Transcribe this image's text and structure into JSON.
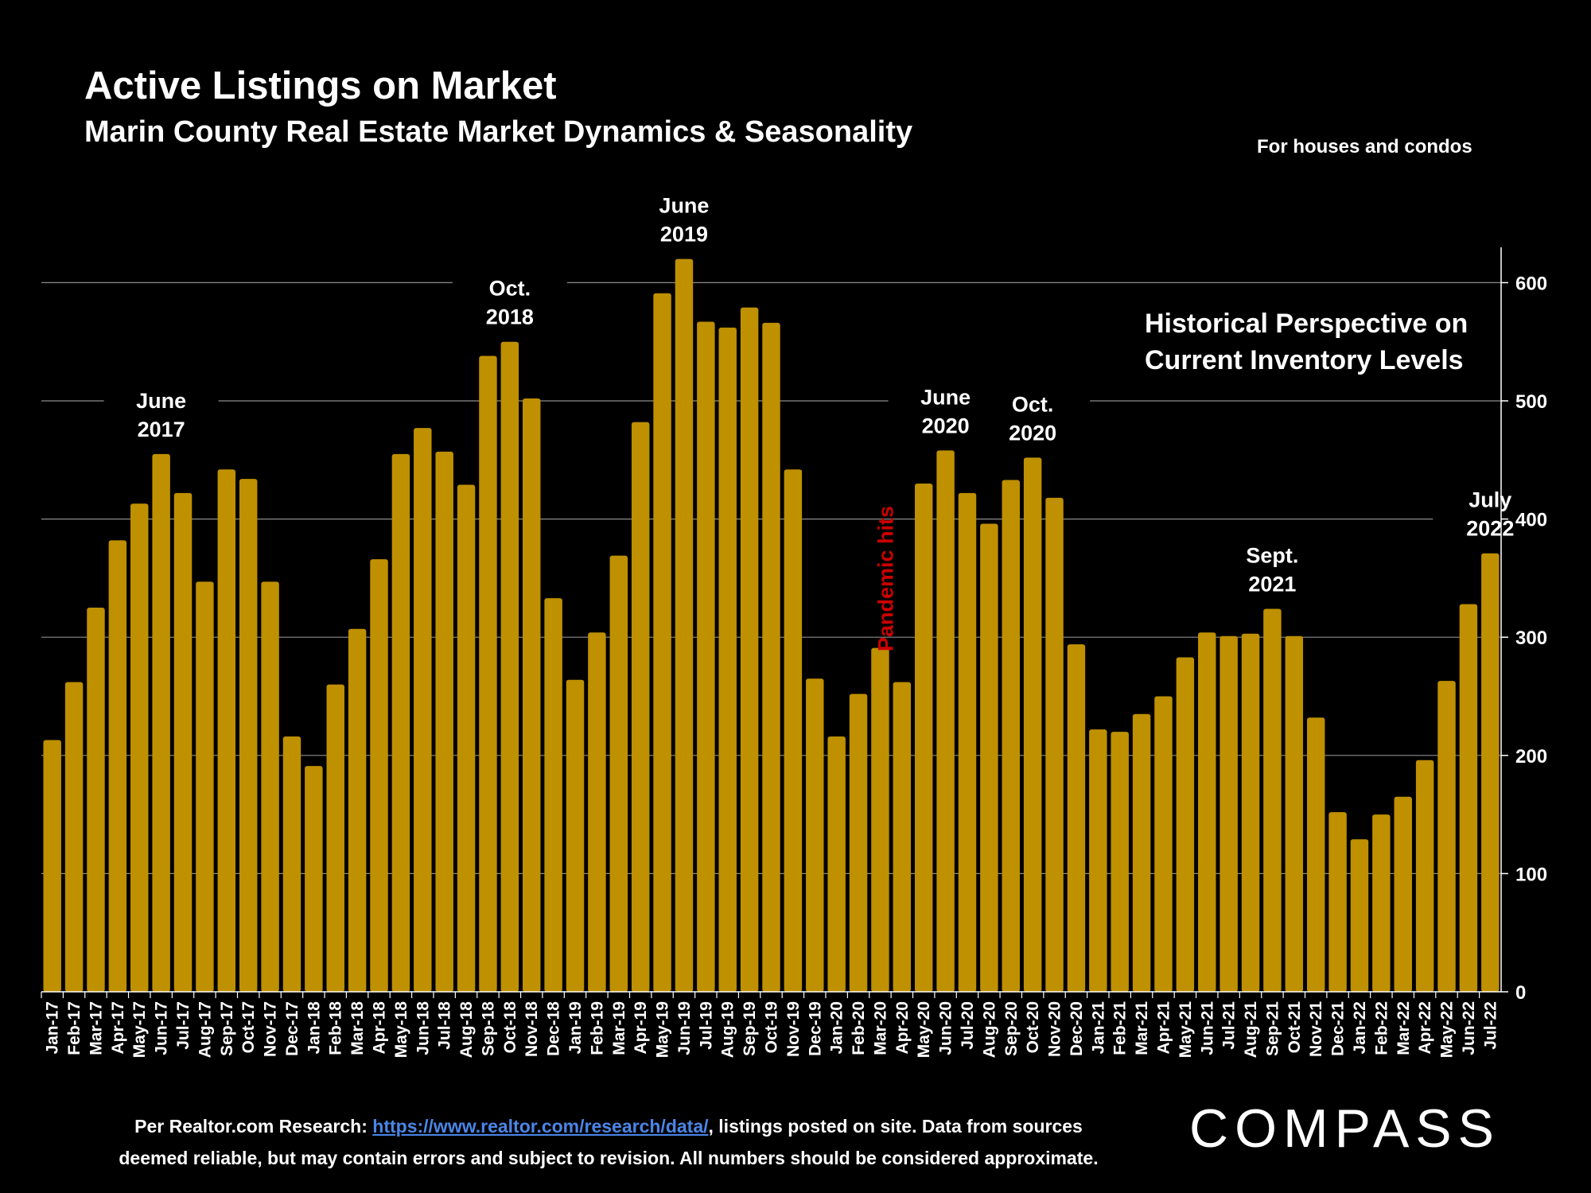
{
  "header": {
    "title": "Active Listings on Market",
    "subtitle": "Marin County Real Estate Market Dynamics & Seasonality",
    "note": "For houses and condos",
    "perspective_line1": "Historical Perspective on",
    "perspective_line2": "Current Inventory Levels"
  },
  "footer": {
    "prefix": "Per Realtor.com Research:  ",
    "link": "https://www.realtor.com/research/data/",
    "suffix": ", listings posted on site. Data from sources",
    "line2": "deemed reliable, but may contain errors and subject to revision. All numbers should be considered approximate."
  },
  "logo": {
    "text": "COMPASS"
  },
  "colors": {
    "bar": "#BF9000",
    "background": "#000000",
    "grid": "#8c8c8c",
    "pandemic_label": "#cc0000"
  },
  "chart_data": {
    "type": "bar",
    "categories": [
      "Jan-17",
      "Feb-17",
      "Mar-17",
      "Apr-17",
      "May-17",
      "Jun-17",
      "Jul-17",
      "Aug-17",
      "Sep-17",
      "Oct-17",
      "Nov-17",
      "Dec-17",
      "Jan-18",
      "Feb-18",
      "Mar-18",
      "Apr-18",
      "May-18",
      "Jun-18",
      "Jul-18",
      "Aug-18",
      "Sep-18",
      "Oct-18",
      "Nov-18",
      "Dec-18",
      "Jan-19",
      "Feb-19",
      "Mar-19",
      "Apr-19",
      "May-19",
      "Jun-19",
      "Jul-19",
      "Aug-19",
      "Sep-19",
      "Oct-19",
      "Nov-19",
      "Dec-19",
      "Jan-20",
      "Feb-20",
      "Mar-20",
      "Apr-20",
      "May-20",
      "Jun-20",
      "Jul-20",
      "Aug-20",
      "Sep-20",
      "Oct-20",
      "Nov-20",
      "Dec-20",
      "Jan-21",
      "Feb-21",
      "Mar-21",
      "Apr-21",
      "May-21",
      "Jun-21",
      "Jul-21",
      "Aug-21",
      "Sep-21",
      "Oct-21",
      "Nov-21",
      "Dec-21",
      "Jan-22",
      "Feb-22",
      "Mar-22",
      "Apr-22",
      "May-22",
      "Jun-22",
      "Jul-22"
    ],
    "values": [
      213,
      262,
      325,
      382,
      413,
      455,
      422,
      347,
      442,
      434,
      347,
      216,
      191,
      260,
      307,
      366,
      455,
      477,
      457,
      429,
      538,
      550,
      502,
      333,
      264,
      304,
      369,
      482,
      591,
      620,
      567,
      562,
      579,
      566,
      442,
      265,
      216,
      252,
      291,
      262,
      430,
      458,
      422,
      396,
      433,
      452,
      418,
      294,
      222,
      220,
      235,
      250,
      283,
      304,
      301,
      303,
      324,
      301,
      232,
      152,
      129,
      150,
      165,
      196,
      263,
      328,
      371
    ],
    "ylim": [
      0,
      630
    ],
    "yticks": [
      0,
      100,
      200,
      300,
      400,
      500,
      600
    ],
    "y_axis_side": "right",
    "grid": true,
    "annotations": [
      {
        "index": 5,
        "line1": "June",
        "line2": "2017"
      },
      {
        "index": 21,
        "line1": "Oct.",
        "line2": "2018"
      },
      {
        "index": 29,
        "line1": "June",
        "line2": "2019"
      },
      {
        "index": 41,
        "line1": "June",
        "line2": "2020"
      },
      {
        "index": 45,
        "line1": "Oct.",
        "line2": "2020"
      },
      {
        "index": 56,
        "line1": "Sept.",
        "line2": "2021"
      },
      {
        "index": 66,
        "line1": "July",
        "line2": "2022"
      }
    ],
    "event_label": {
      "text": "Pandemic hits",
      "index": 38
    }
  }
}
